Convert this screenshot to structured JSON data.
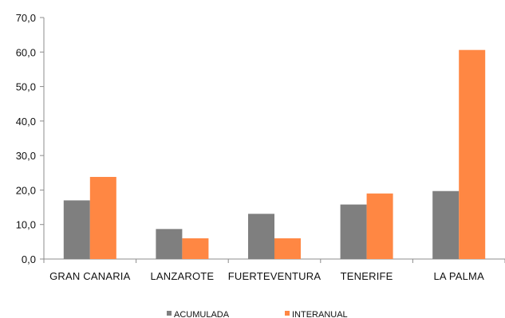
{
  "chart_data": {
    "type": "bar",
    "title": "",
    "xlabel": "",
    "ylabel": "",
    "categories": [
      "GRAN CANARIA",
      "LANZAROTE",
      "FUERTEVENTURA",
      "TENERIFE",
      "LA PALMA"
    ],
    "series": [
      {
        "name": "ACUMULADA",
        "values": [
          17.0,
          8.7,
          13.1,
          15.8,
          19.7
        ],
        "color": "#7f7f7f"
      },
      {
        "name": "INTERANUAL",
        "values": [
          23.8,
          6.0,
          6.0,
          19.0,
          60.6
        ],
        "color": "#ff8743"
      }
    ],
    "ylim": [
      0,
      70
    ],
    "yticks": [
      0,
      10,
      20,
      30,
      40,
      50,
      60,
      70
    ],
    "ytick_labels": [
      "0,0",
      "10,0",
      "20,0",
      "30,0",
      "40,0",
      "50,0",
      "60,0",
      "70,0"
    ],
    "grid": false,
    "legend_position": "bottom-center"
  }
}
